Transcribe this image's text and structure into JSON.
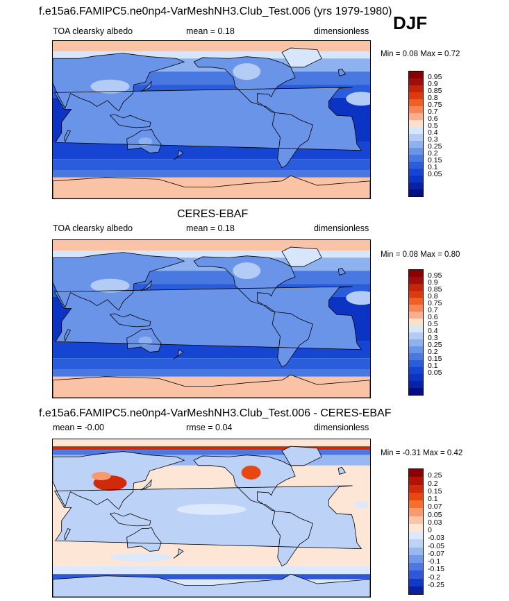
{
  "season": "DJF",
  "panels": [
    {
      "title": "f.e15a6.FAMIPC5.ne0np4-VarMeshNH3.Club_Test.006 (yrs 1979-1980)",
      "left_label": "TOA clearsky albedo",
      "center_label": "mean =   0.18",
      "right_label": "dimensionless",
      "minmax": "Min =   0.08 Max =   0.72",
      "colorbar": {
        "colors": [
          "#8b0000",
          "#a00d0d",
          "#c4240a",
          "#dd3b0e",
          "#f05f24",
          "#f8845a",
          "#fbae8e",
          "#fde0cc",
          "#d8e6fb",
          "#b3ccf6",
          "#8eb1ef",
          "#6a94e8",
          "#4878e0",
          "#2a5ddb",
          "#1545d2",
          "#0b34c4",
          "#0722a8",
          "#040e80"
        ],
        "labels": [
          "0.95",
          "0.9",
          "0.85",
          "0.8",
          "0.75",
          "0.7",
          "0.6",
          "0.5",
          "0.4",
          "0.3",
          "0.25",
          "0.2",
          "0.15",
          "0.1",
          "0.05"
        ]
      }
    },
    {
      "title": "CERES-EBAF",
      "left_label": "TOA clearsky albedo",
      "center_label": "mean =   0.18",
      "right_label": "dimensionless",
      "minmax": "Min =   0.08 Max =   0.80",
      "colorbar": {
        "colors": [
          "#8b0000",
          "#a00d0d",
          "#c4240a",
          "#dd3b0e",
          "#f05f24",
          "#f8845a",
          "#fbae8e",
          "#fde0cc",
          "#d8e6fb",
          "#b3ccf6",
          "#8eb1ef",
          "#6a94e8",
          "#4878e0",
          "#2a5ddb",
          "#1545d2",
          "#0b34c4",
          "#0722a8",
          "#040e80"
        ],
        "labels": [
          "0.95",
          "0.9",
          "0.85",
          "0.8",
          "0.75",
          "0.7",
          "0.6",
          "0.5",
          "0.4",
          "0.3",
          "0.25",
          "0.2",
          "0.15",
          "0.1",
          "0.05"
        ]
      }
    },
    {
      "title": "f.e15a6.FAMIPC5.ne0np4-VarMeshNH3.Club_Test.006 - CERES-EBAF",
      "left_label": "mean =  -0.00",
      "center_label": "rmse =   0.04",
      "right_label": "dimensionless",
      "minmax": "Min =  -0.31 Max =   0.42",
      "colorbar": {
        "colors": [
          "#8b0000",
          "#b31207",
          "#d02a0a",
          "#e8470f",
          "#f5702f",
          "#f99a6e",
          "#fcc3a4",
          "#fee6d6",
          "#dce8fb",
          "#bcd2f7",
          "#98b8f1",
          "#7198e9",
          "#4d78e1",
          "#2e58d9",
          "#1438c8",
          "#08229f"
        ],
        "labels": [
          "0.25",
          "0.2",
          "0.15",
          "0.1",
          "0.07",
          "0.05",
          "0.03",
          "0",
          "-0.03",
          "-0.05",
          "-0.07",
          "-0.1",
          "-0.15",
          "-0.2",
          "-0.25"
        ]
      }
    }
  ]
}
